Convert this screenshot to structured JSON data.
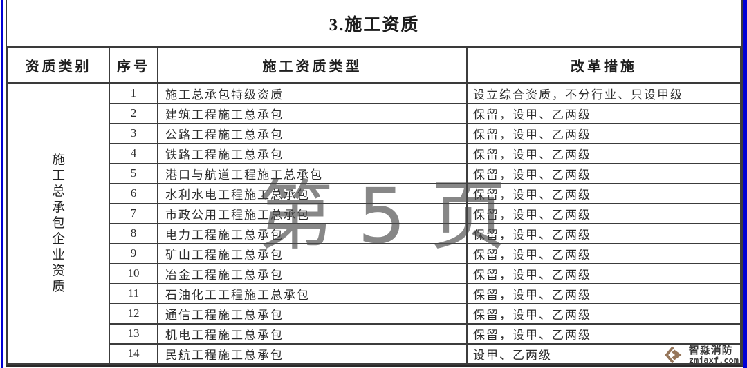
{
  "page": {
    "title": "3.施工资质",
    "watermark": "第 5 页"
  },
  "table": {
    "headers": {
      "category": "资质类别",
      "serial": "序号",
      "type": "施工资质类型",
      "measure": "改革措施"
    },
    "category_label": "施工总承包企业资质",
    "rows": [
      {
        "no": "1",
        "type": "施工总承包特级资质",
        "measure": "设立综合资质，不分行业、只设甲级"
      },
      {
        "no": "2",
        "type": "建筑工程施工总承包",
        "measure": "保留，设甲、乙两级"
      },
      {
        "no": "3",
        "type": "公路工程施工总承包",
        "measure": "保留，设甲、乙两级"
      },
      {
        "no": "4",
        "type": "铁路工程施工总承包",
        "measure": "保留，设甲、乙两级"
      },
      {
        "no": "5",
        "type": "港口与航道工程施工总承包",
        "measure": "保留，设甲、乙两级"
      },
      {
        "no": "6",
        "type": "水利水电工程施工总承包",
        "measure": "保留，设甲、乙两级"
      },
      {
        "no": "7",
        "type": "市政公用工程施工总承包",
        "measure": "保留，设甲、乙两级"
      },
      {
        "no": "8",
        "type": "电力工程施工总承包",
        "measure": "保留，设甲、乙两级"
      },
      {
        "no": "9",
        "type": "矿山工程施工总承包",
        "measure": "保留，设甲、乙两级"
      },
      {
        "no": "10",
        "type": "冶金工程施工总承包",
        "measure": "保留，设甲、乙两级"
      },
      {
        "no": "11",
        "type": "石油化工工程施工总承包",
        "measure": "保留，设甲、乙两级"
      },
      {
        "no": "12",
        "type": "通信工程施工总承包",
        "measure": "保留，设甲、乙两级"
      },
      {
        "no": "13",
        "type": "机电工程施工总承包",
        "measure": "保留，设甲、乙两级"
      },
      {
        "no": "14",
        "type": "民航工程施工总承包",
        "measure": "设甲、乙两级"
      }
    ]
  },
  "logo": {
    "name": "智淼消防",
    "site": "zmjaxf.com"
  },
  "colors": {
    "edge_blue": "#0000d6",
    "border_dark": "#3c3c3c",
    "watermark_gray": "#8c8c8c",
    "logo_brown": "#96765a"
  }
}
